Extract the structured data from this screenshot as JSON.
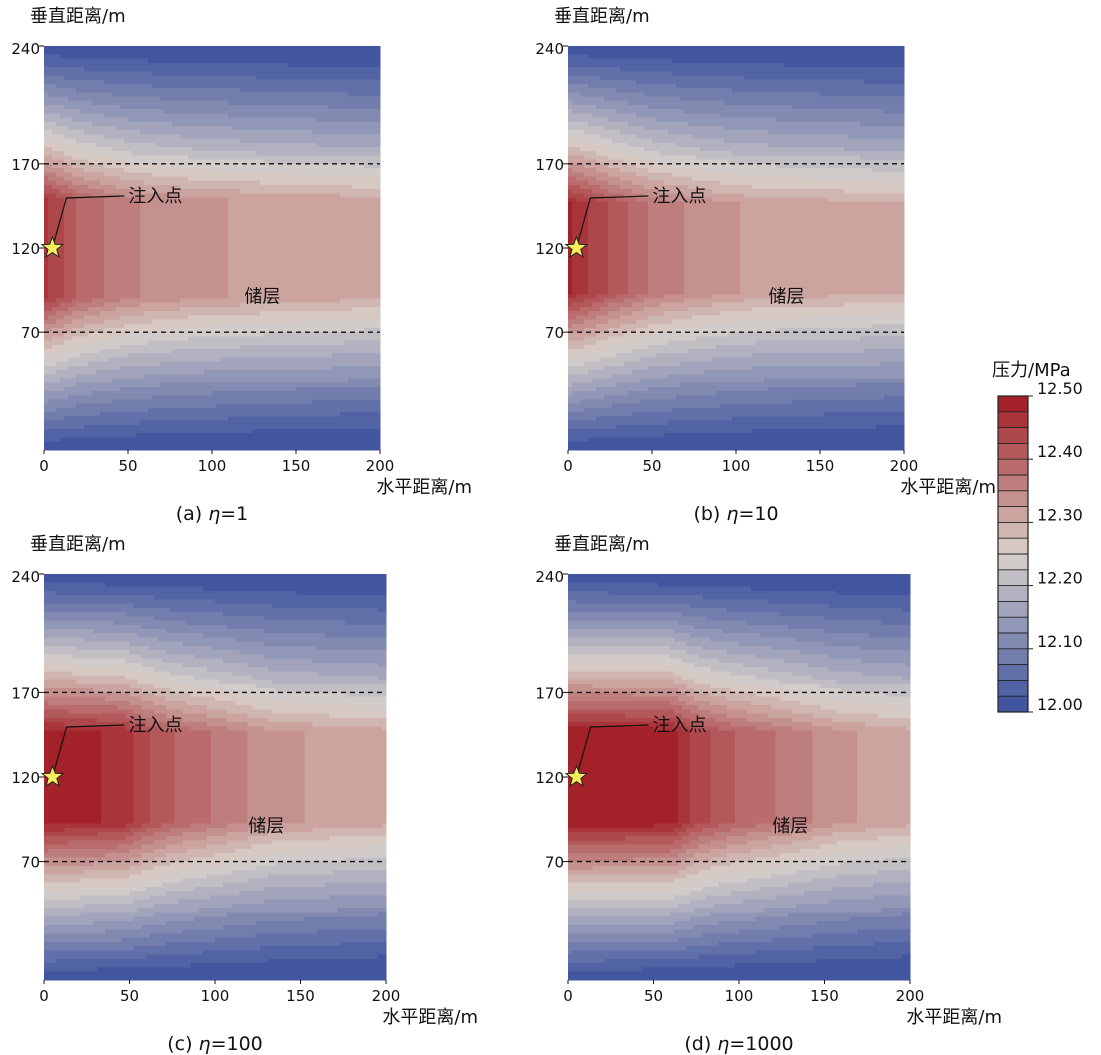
{
  "chart_data": {
    "type": "heatmap",
    "colorbar": {
      "title": "压力/MPa",
      "range": [
        12.0,
        12.5
      ],
      "levels": 20,
      "ticks": [
        "12.50",
        "12.40",
        "12.30",
        "12.20",
        "12.10",
        "12.00"
      ],
      "colors": {
        "low": "#3a4f9e",
        "mid": "#d9d2cb",
        "high": "#a0181f"
      }
    },
    "panels": [
      {
        "caption_prefix": "(a) ",
        "eta": "η",
        "caption_suffix": "=1",
        "ylabel": "垂直距离/m",
        "xlabel": "水平距离/m",
        "xlim": [
          0,
          200
        ],
        "ylim": [
          0,
          240
        ],
        "xticks": [
          "0",
          "50",
          "100",
          "150",
          "200"
        ],
        "yticks": [
          "240",
          "170",
          "120",
          "70"
        ],
        "reservoir_bounds": [
          70,
          170
        ],
        "injection_point": {
          "label": "注入点",
          "x": 5,
          "y": 120
        },
        "reservoir_label": "储层",
        "plume_half_width": 0.55,
        "plume_extent": 150,
        "high_core": [
          [
            0,
            12.46
          ],
          [
            20,
            12.4
          ],
          [
            50,
            12.355
          ],
          [
            90,
            12.33
          ],
          [
            150,
            12.315
          ],
          [
            200,
            12.305
          ]
        ]
      },
      {
        "caption_prefix": "(b) ",
        "eta": "η",
        "caption_suffix": "=10",
        "ylabel": "垂直距离/m",
        "xlabel": "水平距离/m",
        "xlim": [
          0,
          200
        ],
        "ylim": [
          0,
          240
        ],
        "xticks": [
          "0",
          "50",
          "100",
          "150",
          "200"
        ],
        "yticks": [
          "240",
          "170",
          "120",
          "70"
        ],
        "reservoir_bounds": [
          70,
          170
        ],
        "injection_point": {
          "label": "注入点",
          "x": 5,
          "y": 120
        },
        "reservoir_label": "储层",
        "plume_half_width": 0.5,
        "plume_extent": 180,
        "high_core": [
          [
            0,
            12.48
          ],
          [
            25,
            12.42
          ],
          [
            50,
            12.37
          ],
          [
            80,
            12.34
          ],
          [
            110,
            12.32
          ],
          [
            180,
            12.305
          ],
          [
            200,
            12.3
          ]
        ]
      },
      {
        "caption_prefix": "(c) ",
        "eta": "η",
        "caption_suffix": "=100",
        "ylabel": "垂直距离/m",
        "xlabel": "水平距离/m",
        "xlim": [
          0,
          200
        ],
        "ylim": [
          0,
          240
        ],
        "xticks": [
          "0",
          "50",
          "100",
          "150",
          "200"
        ],
        "yticks": [
          "240",
          "170",
          "120",
          "70"
        ],
        "reservoir_bounds": [
          70,
          170
        ],
        "injection_point": {
          "label": "注入点",
          "x": 5,
          "y": 120
        },
        "reservoir_label": "储层",
        "plume_half_width": 0.5,
        "plume_extent": 140,
        "high_core": [
          [
            0,
            12.49
          ],
          [
            45,
            12.47
          ],
          [
            60,
            12.43
          ],
          [
            75,
            12.4
          ],
          [
            110,
            12.36
          ],
          [
            135,
            12.33
          ],
          [
            200,
            12.31
          ]
        ]
      },
      {
        "caption_prefix": "(d) ",
        "eta": "η",
        "caption_suffix": "=1000",
        "ylabel": "垂直距离/m",
        "xlabel": "水平距离/m",
        "xlim": [
          0,
          200
        ],
        "ylim": [
          0,
          240
        ],
        "xticks": [
          "0",
          "50",
          "100",
          "150",
          "200"
        ],
        "yticks": [
          "240",
          "170",
          "120",
          "70"
        ],
        "reservoir_bounds": [
          70,
          170
        ],
        "injection_point": {
          "label": "注入点",
          "x": 5,
          "y": 120
        },
        "reservoir_label": "储层",
        "plume_half_width": 0.5,
        "plume_extent": 160,
        "high_core": [
          [
            0,
            12.5
          ],
          [
            60,
            12.49
          ],
          [
            75,
            12.44
          ],
          [
            90,
            12.41
          ],
          [
            125,
            12.37
          ],
          [
            160,
            12.33
          ],
          [
            200,
            12.31
          ]
        ]
      }
    ]
  }
}
